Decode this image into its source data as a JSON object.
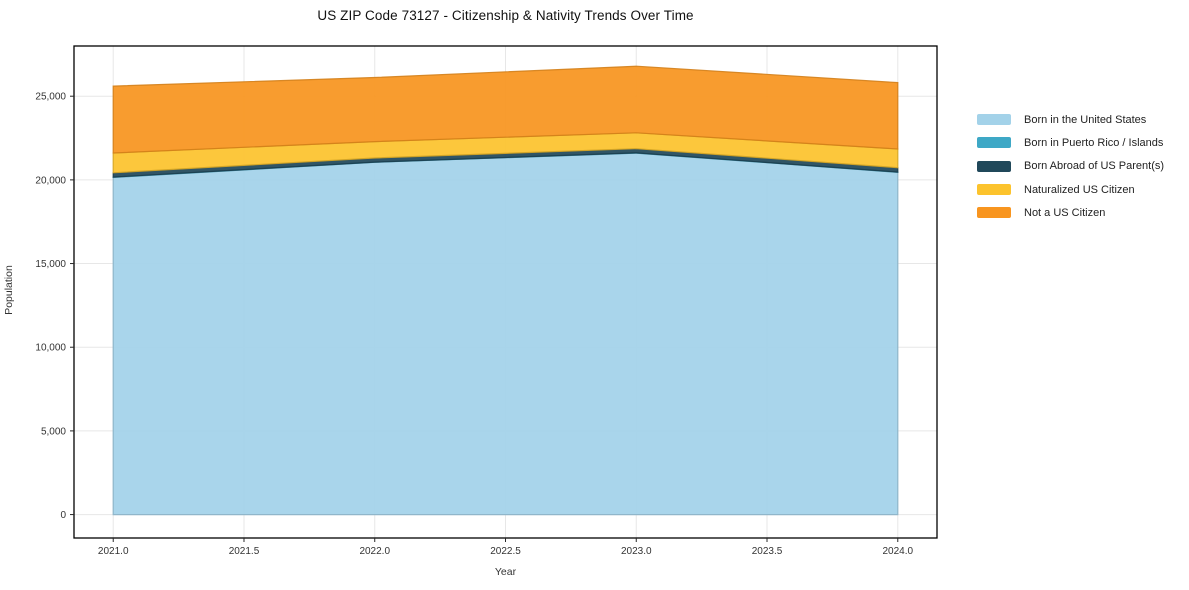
{
  "title": "US ZIP Code 73127 - Citizenship & Nativity Trends Over Time",
  "chart_data": {
    "type": "area",
    "stacked": true,
    "title": "US ZIP Code 73127 - Citizenship & Nativity Trends Over Time",
    "xlabel": "Year",
    "ylabel": "Population",
    "x": [
      2021,
      2022,
      2023,
      2024
    ],
    "series": [
      {
        "name": "Born in the United States",
        "color": "#a3d2e9",
        "values": [
          20150,
          21050,
          21600,
          20450
        ]
      },
      {
        "name": "Born in Puerto Rico / Islands",
        "color": "#3ea8c6",
        "values": [
          15,
          15,
          15,
          15
        ]
      },
      {
        "name": "Born Abroad of US Parent(s)",
        "color": "#20485a",
        "values": [
          260,
          240,
          250,
          260
        ]
      },
      {
        "name": "Naturalized US Citizen",
        "color": "#fcc32d",
        "values": [
          1180,
          980,
          950,
          1120
        ]
      },
      {
        "name": "Not a US Citizen",
        "color": "#f8951f",
        "values": [
          4000,
          3830,
          3980,
          3970
        ]
      }
    ],
    "totals": [
      25605,
      26115,
      26795,
      25815
    ],
    "yticks": [
      0,
      5000,
      10000,
      15000,
      20000,
      25000
    ],
    "xticks": [
      2021.0,
      2021.5,
      2022.0,
      2022.5,
      2023.0,
      2023.5,
      2024.0
    ],
    "ylim": [
      -1400,
      28000
    ],
    "xlim": [
      2020.85,
      2024.15
    ],
    "grid": true,
    "grid_color": "#e7e7e7",
    "background": "#ffffff",
    "legend_position": "right-outside",
    "fill_opacity": 0.93
  }
}
